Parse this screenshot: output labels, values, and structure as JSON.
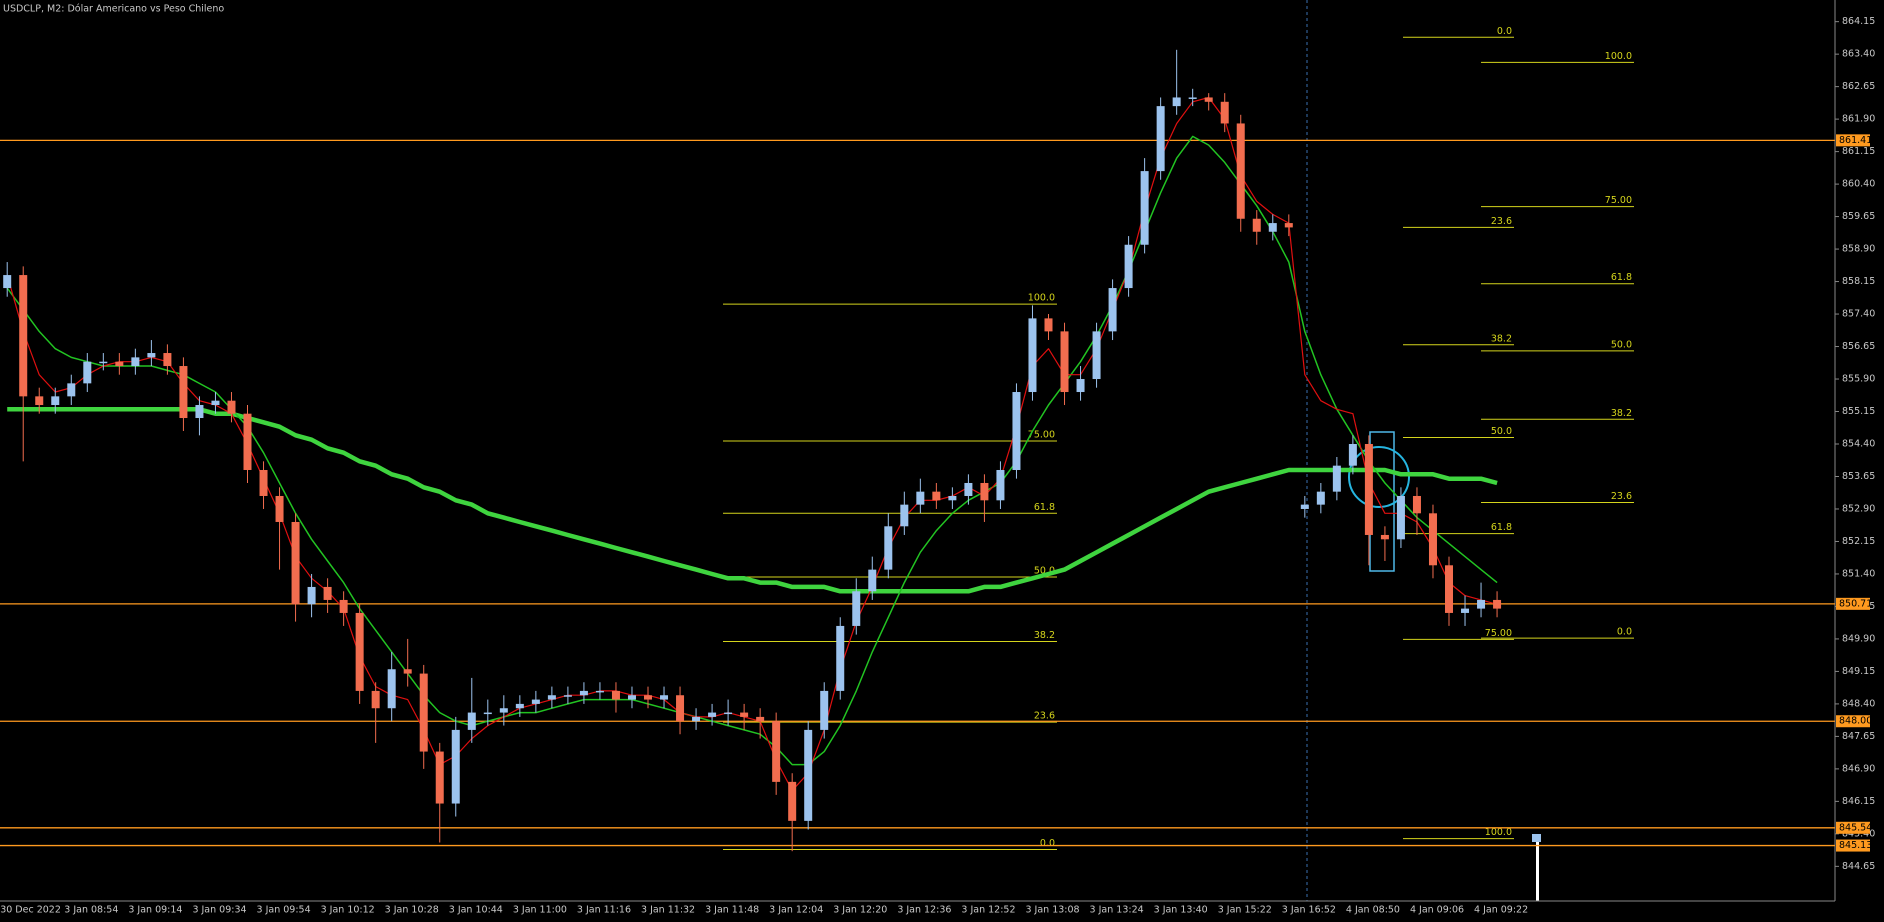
{
  "chart_data": {
    "type": "candlestick",
    "title": "USDCLP, M2:  Dólar Americano vs Peso Chileno",
    "categories": [
      "30 Dec 2022",
      null,
      null,
      null,
      "3 Jan 08:54",
      null,
      null,
      null,
      "3 Jan 09:14",
      null,
      null,
      null,
      "3 Jan 09:34",
      null,
      null,
      null,
      "3 Jan 09:54",
      null,
      null,
      null,
      "3 Jan 10:12",
      null,
      null,
      null,
      "3 Jan 10:28",
      null,
      null,
      null,
      "3 Jan 10:44",
      null,
      null,
      null,
      "3 Jan 11:00",
      null,
      null,
      null,
      "3 Jan 11:16",
      null,
      null,
      null,
      "3 Jan 11:32",
      null,
      null,
      null,
      "3 Jan 11:48",
      null,
      null,
      null,
      "3 Jan 12:04",
      null,
      null,
      null,
      "3 Jan 12:20",
      null,
      null,
      null,
      "3 Jan 12:36",
      null,
      null,
      null,
      "3 Jan 12:52",
      null,
      null,
      null,
      "3 Jan 13:08",
      null,
      null,
      null,
      "3 Jan 13:24",
      null,
      null,
      null,
      "3 Jan 13:40",
      null,
      null,
      null,
      "3 Jan 15:22",
      null,
      null,
      null,
      "3 Jan 16:52",
      null,
      null,
      null,
      "4 Jan 08:50",
      null,
      null,
      null,
      "4 Jan 09:06",
      null,
      null,
      null,
      "4 Jan 09:22",
      null
    ],
    "open": [
      858.0,
      858.3,
      855.5,
      855.3,
      855.5,
      855.8,
      856.3,
      856.3,
      856.2,
      856.4,
      856.5,
      856.2,
      855.0,
      855.3,
      855.4,
      855.1,
      853.8,
      853.2,
      852.6,
      850.7,
      851.1,
      850.8,
      850.5,
      848.7,
      848.3,
      849.2,
      849.1,
      847.3,
      846.1,
      847.8,
      848.2,
      848.2,
      848.3,
      848.4,
      848.5,
      848.6,
      848.6,
      848.7,
      848.7,
      848.5,
      848.6,
      848.5,
      848.6,
      848.0,
      848.1,
      848.2,
      848.2,
      848.1,
      848.0,
      846.6,
      845.7,
      847.8,
      848.7,
      850.2,
      851.0,
      851.5,
      852.5,
      853.0,
      853.3,
      853.1,
      853.2,
      853.5,
      853.1,
      853.8,
      855.6,
      857.3,
      857.0,
      855.6,
      855.9,
      857.0,
      858.0,
      859.0,
      860.7,
      862.2,
      862.4,
      862.4,
      862.3,
      861.8,
      859.6,
      859.3,
      859.5,
      852.9,
      853.0,
      853.3,
      853.9,
      854.4,
      852.3,
      852.2,
      853.2,
      852.8,
      851.6,
      850.5,
      850.6,
      850.8
    ],
    "high": [
      858.6,
      858.5,
      855.7,
      855.7,
      856.0,
      856.5,
      856.5,
      856.5,
      856.6,
      856.8,
      856.7,
      856.4,
      855.5,
      855.6,
      855.6,
      855.3,
      854.0,
      853.4,
      852.8,
      851.4,
      851.3,
      851.0,
      850.7,
      848.9,
      849.6,
      849.9,
      849.3,
      847.5,
      848.1,
      849.0,
      848.5,
      848.6,
      848.6,
      848.7,
      848.8,
      848.8,
      848.9,
      848.9,
      848.9,
      848.8,
      848.8,
      848.8,
      848.8,
      848.3,
      848.4,
      848.5,
      848.4,
      848.3,
      848.2,
      846.8,
      848.0,
      848.9,
      850.4,
      851.3,
      851.8,
      852.8,
      853.3,
      853.6,
      853.5,
      853.4,
      853.7,
      853.7,
      854.0,
      855.8,
      857.6,
      857.4,
      857.2,
      856.2,
      857.2,
      858.2,
      859.2,
      861.0,
      862.4,
      863.5,
      862.6,
      862.5,
      862.5,
      862.0,
      859.8,
      859.7,
      859.7,
      853.2,
      853.5,
      854.1,
      854.6,
      854.6,
      852.5,
      853.4,
      853.4,
      853.0,
      851.8,
      850.9,
      851.2,
      851.0
    ],
    "low": [
      857.8,
      854.0,
      855.1,
      855.1,
      855.3,
      855.6,
      856.1,
      856.0,
      856.0,
      856.2,
      856.0,
      854.7,
      854.6,
      855.1,
      854.9,
      853.5,
      852.9,
      851.5,
      850.3,
      850.4,
      850.5,
      850.2,
      848.4,
      847.5,
      848.0,
      848.8,
      846.9,
      845.2,
      845.8,
      847.5,
      847.9,
      847.9,
      848.1,
      848.2,
      848.3,
      848.4,
      848.4,
      848.5,
      848.2,
      848.3,
      848.3,
      848.3,
      847.7,
      847.8,
      847.9,
      847.9,
      847.8,
      847.6,
      846.3,
      845.0,
      845.5,
      847.6,
      848.5,
      850.0,
      850.8,
      851.3,
      852.3,
      852.8,
      852.9,
      852.9,
      853.0,
      852.6,
      852.9,
      853.6,
      855.4,
      856.8,
      855.3,
      855.4,
      855.7,
      856.8,
      857.8,
      858.8,
      860.5,
      862.0,
      862.2,
      862.1,
      861.6,
      859.3,
      859.0,
      859.1,
      859.2,
      852.7,
      852.8,
      853.1,
      853.7,
      851.6,
      851.7,
      852.0,
      852.3,
      851.3,
      850.2,
      850.2,
      850.4,
      850.4
    ],
    "close": [
      858.3,
      855.5,
      855.3,
      855.5,
      855.8,
      856.3,
      856.3,
      856.2,
      856.4,
      856.5,
      856.2,
      855.0,
      855.3,
      855.4,
      855.1,
      853.8,
      853.2,
      852.6,
      850.7,
      851.1,
      850.8,
      850.5,
      848.7,
      848.3,
      849.2,
      849.1,
      847.3,
      846.1,
      847.8,
      848.2,
      848.2,
      848.3,
      848.4,
      848.5,
      848.6,
      848.6,
      848.7,
      848.7,
      848.5,
      848.6,
      848.5,
      848.6,
      848.0,
      848.1,
      848.2,
      848.2,
      848.1,
      848.0,
      846.6,
      845.7,
      847.8,
      848.7,
      850.2,
      851.0,
      851.5,
      852.5,
      853.0,
      853.3,
      853.1,
      853.2,
      853.5,
      853.1,
      853.8,
      855.6,
      857.3,
      857.0,
      855.6,
      855.9,
      857.0,
      858.0,
      859.0,
      860.7,
      862.2,
      862.4,
      862.4,
      862.3,
      861.8,
      859.6,
      859.3,
      859.5,
      859.4,
      853.0,
      853.3,
      853.9,
      854.4,
      852.3,
      852.2,
      853.2,
      852.8,
      851.6,
      850.5,
      850.6,
      850.8,
      850.6
    ],
    "colors": {
      "up": "#9cc3ee",
      "down": "#f26d4f"
    },
    "lines": [
      {
        "color": "#3fd43f",
        "width": 4.5,
        "values": [
          855.2,
          855.2,
          855.2,
          855.2,
          855.2,
          855.2,
          855.2,
          855.2,
          855.2,
          855.2,
          855.2,
          855.2,
          855.2,
          855.1,
          855.1,
          855.0,
          854.9,
          854.8,
          854.6,
          854.5,
          854.3,
          854.2,
          854.0,
          853.9,
          853.7,
          853.6,
          853.4,
          853.3,
          853.1,
          853.0,
          852.8,
          852.7,
          852.6,
          852.5,
          852.4,
          852.3,
          852.2,
          852.1,
          852.0,
          851.9,
          851.8,
          851.7,
          851.6,
          851.5,
          851.4,
          851.3,
          851.3,
          851.2,
          851.2,
          851.1,
          851.1,
          851.1,
          851.0,
          851.0,
          851.0,
          851.0,
          851.0,
          851.0,
          851.0,
          851.0,
          851.0,
          851.1,
          851.1,
          851.2,
          851.3,
          851.4,
          851.5,
          851.7,
          851.9,
          852.1,
          852.3,
          852.5,
          852.7,
          852.9,
          853.1,
          853.3,
          853.4,
          853.5,
          853.6,
          853.7,
          853.8,
          853.8,
          853.8,
          853.8,
          853.8,
          853.8,
          853.8,
          853.7,
          853.7,
          853.7,
          853.6,
          853.6,
          853.6,
          853.5
        ]
      },
      {
        "color": "#22c322",
        "width": 1.5,
        "values": [
          858.0,
          857.5,
          857.0,
          856.6,
          856.4,
          856.3,
          856.2,
          856.2,
          856.2,
          856.2,
          856.1,
          856.0,
          855.8,
          855.6,
          855.2,
          854.8,
          854.2,
          853.5,
          852.8,
          852.2,
          851.7,
          851.2,
          850.6,
          850.1,
          849.6,
          849.1,
          848.6,
          848.2,
          848.0,
          847.9,
          848.0,
          848.1,
          848.2,
          848.2,
          848.3,
          848.4,
          848.5,
          848.5,
          848.5,
          848.5,
          848.4,
          848.3,
          848.2,
          848.1,
          848.0,
          847.9,
          847.8,
          847.7,
          847.4,
          847.0,
          847.0,
          847.3,
          847.9,
          848.7,
          849.6,
          850.4,
          851.2,
          851.9,
          852.4,
          852.8,
          853.1,
          853.3,
          853.5,
          854.0,
          854.7,
          855.3,
          855.8,
          856.3,
          856.9,
          857.6,
          858.4,
          859.3,
          860.2,
          861.0,
          861.5,
          861.3,
          860.9,
          860.4,
          859.9,
          859.3,
          858.6,
          857.0,
          856.0,
          855.2,
          854.6,
          854.0,
          853.5,
          853.1,
          852.7,
          852.4,
          852.1,
          851.8,
          851.5,
          851.2
        ]
      },
      {
        "color": "#e01010",
        "width": 1.2,
        "values": [
          858.3,
          857.0,
          856.0,
          855.6,
          855.7,
          856.0,
          856.2,
          856.3,
          856.3,
          856.4,
          856.3,
          855.8,
          855.4,
          855.3,
          855.1,
          854.4,
          853.6,
          852.8,
          851.8,
          851.3,
          851.0,
          850.6,
          849.5,
          848.8,
          848.6,
          848.5,
          847.8,
          847.0,
          847.2,
          847.6,
          847.9,
          848.1,
          848.3,
          848.4,
          848.5,
          848.6,
          848.6,
          848.7,
          848.7,
          848.6,
          848.6,
          848.5,
          848.2,
          848.1,
          848.1,
          848.2,
          848.1,
          848.0,
          847.1,
          846.4,
          846.8,
          847.8,
          849.2,
          850.3,
          851.1,
          852.0,
          852.7,
          853.1,
          853.1,
          853.2,
          853.4,
          853.2,
          853.6,
          854.8,
          856.2,
          856.6,
          856.0,
          856.0,
          856.6,
          857.5,
          858.4,
          859.8,
          861.0,
          861.8,
          862.3,
          862.4,
          861.9,
          860.6,
          860.0,
          859.7,
          859.5,
          856.0,
          855.4,
          855.2,
          855.1,
          853.5,
          852.8,
          852.8,
          852.6,
          852.0,
          851.2,
          850.9,
          850.8,
          850.7
        ]
      }
    ],
    "level_color": "#ff9a1f",
    "levels": [
      861.41,
      850.71,
      {
        "value": 848,
        "label": "848.00"
      },
      845.54,
      845.13
    ],
    "fib_color": "#d4d41c",
    "fibonacci": [
      {
        "levels": [
          {
            "label": "100.0",
            "price": 857.63
          },
          {
            "label": "75.00",
            "price": 854.47
          },
          {
            "label": "61.8",
            "price": 852.8
          },
          {
            "label": "50.0",
            "price": 851.33
          },
          {
            "label": "38.2",
            "price": 849.84
          },
          {
            "label": "23.6",
            "price": 847.98
          },
          {
            "label": "0.0",
            "price": 845.04
          }
        ]
      },
      {
        "levels": [
          {
            "label": "0.0",
            "price": 863.79
          },
          {
            "label": "23.6",
            "price": 859.4
          },
          {
            "label": "38.2",
            "price": 856.69
          },
          {
            "label": "50.0",
            "price": 854.55
          },
          {
            "label": "61.8",
            "price": 852.33
          },
          {
            "label": "75.00",
            "price": 849.89
          },
          {
            "label": "100.0",
            "price": 845.29
          }
        ]
      },
      {
        "levels": [
          {
            "label": "100.0",
            "price": 863.21
          },
          {
            "label": "75.00",
            "price": 859.88
          },
          {
            "label": "61.8",
            "price": 858.1
          },
          {
            "label": "50.0",
            "price": 856.55
          },
          {
            "label": "38.2",
            "price": 854.97
          },
          {
            "label": "23.6",
            "price": 853.05
          },
          {
            "label": "0.0",
            "price": 849.92
          }
        ]
      }
    ],
    "ylim": [
      843.85,
      864.65
    ],
    "yticks": [
      864.15,
      {
        "value": 863.4,
        "label": "863.40"
      },
      862.65,
      {
        "value": 861.9,
        "label": "861.90"
      },
      861.15,
      {
        "value": 860.4,
        "label": "860.40"
      },
      859.65,
      {
        "value": 858.9,
        "label": "858.90"
      },
      858.15,
      {
        "value": 857.4,
        "label": "857.40"
      },
      856.65,
      {
        "value": 855.9,
        "label": "855.90"
      },
      855.15,
      {
        "value": 854.4,
        "label": "854.40"
      },
      853.65,
      {
        "value": 852.9,
        "label": "852.90"
      },
      852.15,
      {
        "value": 851.4,
        "label": "851.40"
      },
      850.65,
      {
        "value": 849.9,
        "label": "849.90"
      },
      849.15,
      {
        "value": 848.4,
        "label": "848.40"
      },
      847.65,
      {
        "value": 846.9,
        "label": "846.90"
      },
      846.15,
      {
        "value": 845.4,
        "label": "845.40"
      },
      844.65
    ]
  }
}
